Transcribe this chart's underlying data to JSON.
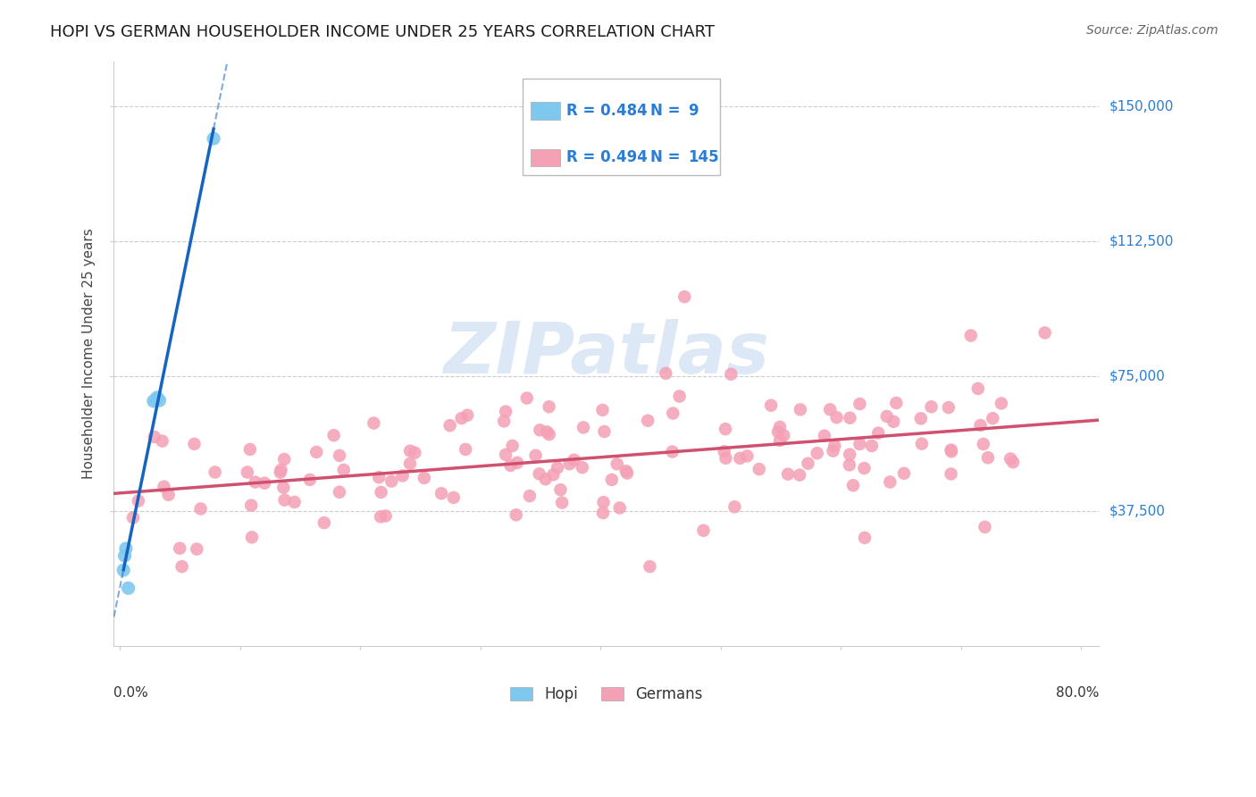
{
  "title": "HOPI VS GERMAN HOUSEHOLDER INCOME UNDER 25 YEARS CORRELATION CHART",
  "source_text": "Source: ZipAtlas.com",
  "ylabel": "Householder Income Under 25 years",
  "ytick_labels": [
    "$37,500",
    "$75,000",
    "$112,500",
    "$150,000"
  ],
  "ytick_values": [
    37500,
    75000,
    112500,
    150000
  ],
  "ymin": 0,
  "ymax": 162500,
  "xmin": -0.005,
  "xmax": 0.815,
  "legend_r_hopi": "R = 0.484",
  "legend_n_hopi": "9",
  "legend_r_german": "R = 0.494",
  "legend_n_german": "145",
  "hopi_color": "#7ec8f0",
  "german_color": "#f4a0b5",
  "hopi_line_color": "#1565c0",
  "german_line_color": "#d05070",
  "watermark_color": "#dce8f5",
  "background_color": "#ffffff",
  "grid_color": "#cccccc",
  "label_color": "#2a7dd4",
  "hopi_x": [
    0.003,
    0.004,
    0.005,
    0.007,
    0.028,
    0.03,
    0.031,
    0.033,
    0.078
  ],
  "hopi_y": [
    21000,
    25000,
    27000,
    16000,
    68000,
    68500,
    69000,
    68200,
    141000
  ]
}
